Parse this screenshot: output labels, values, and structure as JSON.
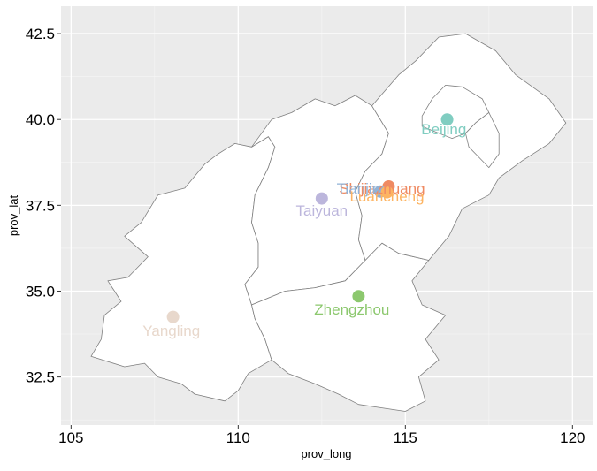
{
  "chart_data": {
    "type": "map",
    "xlabel": "prov_long",
    "ylabel": "prov_lat",
    "xlim": [
      104.7,
      120.6
    ],
    "ylim": [
      31.1,
      43.3
    ],
    "x_ticks": [
      105,
      110,
      115,
      120
    ],
    "x_tick_labels": [
      "105",
      "110",
      "115",
      "120"
    ],
    "y_ticks": [
      32.5,
      35.0,
      37.5,
      40.0,
      42.5
    ],
    "y_tick_labels": [
      "32.5",
      "35.0",
      "37.5",
      "40.0",
      "42.5"
    ],
    "grid": true,
    "panel_background": "#ebebeb",
    "region_fill": "#ffffff",
    "region_border": "#7f7f7f",
    "points": [
      {
        "name": "Beijing",
        "x": 116.25,
        "y": 40.0,
        "color": "#80cdc1",
        "label_dx": -0.1,
        "label_dy": -0.28
      },
      {
        "name": "Shijiazhuang",
        "x": 114.5,
        "y": 38.05,
        "color": "#ef8a62",
        "label_dx": -0.2,
        "label_dy": -0.05
      },
      {
        "name": "Tianjin",
        "x": 114.25,
        "y": 37.9,
        "color": "#91b3d7",
        "label_dx": -0.65,
        "label_dy": 0.1
      },
      {
        "name": "Luancheng",
        "x": 114.45,
        "y": 37.88,
        "color": "#fdb462",
        "label_dx": 0.0,
        "label_dy": -0.12
      },
      {
        "name": "Taiyuan",
        "x": 112.5,
        "y": 37.7,
        "color": "#bcb6dc",
        "label_dx": 0.0,
        "label_dy": -0.35
      },
      {
        "name": "Zhengzhou",
        "x": 113.6,
        "y": 34.85,
        "color": "#8cc86e",
        "label_dx": -0.2,
        "label_dy": -0.38
      },
      {
        "name": "Yangling",
        "x": 108.05,
        "y": 34.25,
        "color": "#e8d8cc",
        "label_dx": -0.05,
        "label_dy": -0.4
      }
    ],
    "regions": [
      {
        "name": "shaanxi",
        "coords": [
          [
            109.0,
            38.7
          ],
          [
            108.4,
            38.0
          ],
          [
            107.6,
            37.8
          ],
          [
            107.1,
            37.0
          ],
          [
            106.6,
            36.6
          ],
          [
            107.3,
            36.0
          ],
          [
            106.7,
            35.4
          ],
          [
            106.1,
            35.3
          ],
          [
            106.5,
            34.7
          ],
          [
            106.0,
            34.3
          ],
          [
            105.9,
            33.6
          ],
          [
            105.6,
            33.1
          ],
          [
            106.6,
            32.8
          ],
          [
            107.2,
            32.9
          ],
          [
            107.6,
            32.5
          ],
          [
            108.3,
            32.3
          ],
          [
            108.7,
            32.0
          ],
          [
            109.6,
            31.8
          ],
          [
            110.0,
            32.1
          ],
          [
            110.3,
            32.6
          ],
          [
            111.0,
            33.0
          ],
          [
            110.8,
            33.6
          ],
          [
            110.5,
            34.2
          ],
          [
            110.4,
            34.6
          ],
          [
            110.2,
            35.2
          ],
          [
            110.6,
            35.7
          ],
          [
            110.6,
            36.4
          ],
          [
            110.4,
            37.0
          ],
          [
            110.5,
            37.8
          ],
          [
            110.9,
            38.6
          ],
          [
            111.1,
            39.2
          ],
          [
            110.9,
            39.5
          ],
          [
            110.4,
            39.2
          ],
          [
            109.9,
            39.3
          ],
          [
            109.4,
            39.0
          ],
          [
            109.0,
            38.7
          ]
        ]
      },
      {
        "name": "shanxi",
        "coords": [
          [
            110.4,
            39.2
          ],
          [
            110.9,
            39.5
          ],
          [
            111.1,
            39.2
          ],
          [
            110.9,
            38.6
          ],
          [
            110.5,
            37.8
          ],
          [
            110.4,
            37.0
          ],
          [
            110.6,
            36.4
          ],
          [
            110.6,
            35.7
          ],
          [
            110.2,
            35.2
          ],
          [
            110.4,
            34.6
          ],
          [
            111.4,
            35.0
          ],
          [
            112.3,
            35.1
          ],
          [
            113.2,
            35.3
          ],
          [
            113.8,
            35.9
          ],
          [
            113.6,
            36.5
          ],
          [
            113.7,
            37.2
          ],
          [
            113.5,
            37.9
          ],
          [
            113.8,
            38.5
          ],
          [
            114.3,
            39.0
          ],
          [
            114.5,
            39.6
          ],
          [
            114.0,
            40.4
          ],
          [
            113.5,
            40.7
          ],
          [
            112.9,
            40.4
          ],
          [
            112.3,
            40.6
          ],
          [
            111.6,
            40.2
          ],
          [
            111.0,
            40.0
          ],
          [
            110.4,
            39.2
          ]
        ]
      },
      {
        "name": "henan",
        "coords": [
          [
            110.4,
            34.6
          ],
          [
            110.5,
            34.2
          ],
          [
            110.8,
            33.6
          ],
          [
            111.0,
            33.0
          ],
          [
            111.5,
            32.6
          ],
          [
            112.3,
            32.3
          ],
          [
            113.0,
            32.0
          ],
          [
            113.6,
            31.7
          ],
          [
            114.3,
            31.6
          ],
          [
            115.0,
            31.5
          ],
          [
            115.6,
            31.8
          ],
          [
            115.4,
            32.5
          ],
          [
            116.0,
            33.0
          ],
          [
            115.6,
            33.6
          ],
          [
            116.2,
            34.3
          ],
          [
            115.5,
            34.6
          ],
          [
            115.2,
            35.3
          ],
          [
            115.7,
            35.9
          ],
          [
            114.8,
            36.1
          ],
          [
            114.3,
            36.4
          ],
          [
            113.8,
            35.9
          ],
          [
            113.2,
            35.3
          ],
          [
            112.3,
            35.1
          ],
          [
            111.4,
            35.0
          ],
          [
            110.4,
            34.6
          ]
        ]
      },
      {
        "name": "hebei",
        "coords": [
          [
            113.8,
            35.9
          ],
          [
            114.3,
            36.4
          ],
          [
            114.8,
            36.1
          ],
          [
            115.7,
            35.9
          ],
          [
            116.3,
            36.6
          ],
          [
            116.7,
            37.4
          ],
          [
            117.5,
            37.8
          ],
          [
            117.8,
            38.3
          ],
          [
            118.5,
            38.8
          ],
          [
            119.3,
            39.3
          ],
          [
            119.8,
            39.9
          ],
          [
            119.3,
            40.6
          ],
          [
            118.3,
            41.3
          ],
          [
            117.7,
            42.0
          ],
          [
            116.8,
            42.5
          ],
          [
            116.0,
            42.4
          ],
          [
            115.3,
            41.7
          ],
          [
            114.8,
            41.3
          ],
          [
            114.0,
            40.4
          ],
          [
            114.5,
            39.6
          ],
          [
            114.3,
            39.0
          ],
          [
            113.8,
            38.5
          ],
          [
            113.5,
            37.9
          ],
          [
            113.7,
            37.2
          ],
          [
            113.6,
            36.5
          ],
          [
            113.8,
            35.9
          ]
        ]
      },
      {
        "name": "beijing",
        "coords": [
          [
            115.5,
            40.1
          ],
          [
            115.8,
            40.6
          ],
          [
            116.2,
            41.0
          ],
          [
            116.7,
            40.95
          ],
          [
            117.3,
            40.6
          ],
          [
            117.5,
            40.2
          ],
          [
            117.1,
            39.9
          ],
          [
            116.8,
            39.6
          ],
          [
            116.4,
            39.45
          ],
          [
            116.0,
            39.6
          ],
          [
            115.5,
            39.8
          ],
          [
            115.5,
            40.1
          ]
        ]
      },
      {
        "name": "tianjin",
        "coords": [
          [
            116.8,
            39.6
          ],
          [
            117.1,
            39.9
          ],
          [
            117.5,
            40.2
          ],
          [
            117.8,
            39.6
          ],
          [
            117.8,
            39.0
          ],
          [
            117.5,
            38.6
          ],
          [
            117.2,
            38.9
          ],
          [
            116.9,
            39.2
          ],
          [
            116.8,
            39.6
          ]
        ]
      }
    ]
  }
}
